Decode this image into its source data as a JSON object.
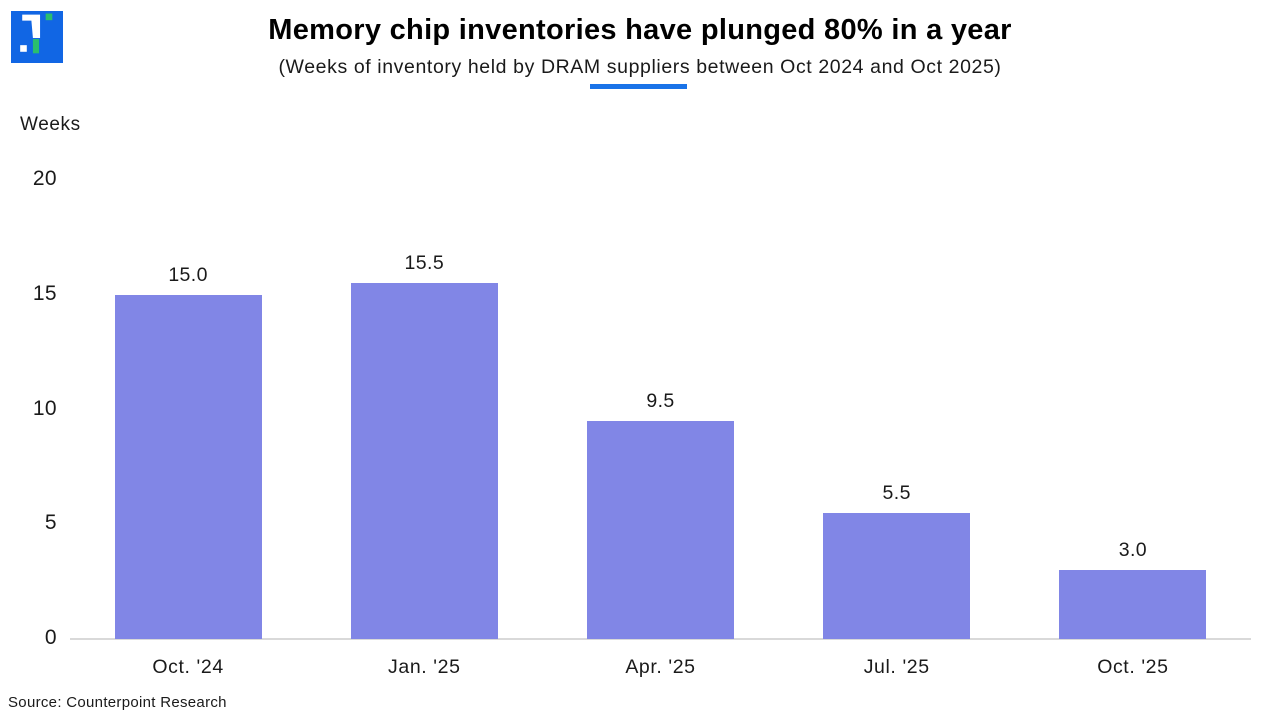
{
  "header": {
    "title": "Memory chip inventories have plunged 80% in a year",
    "subtitle": "(Weeks of inventory held by DRAM suppliers between Oct 2024 and Oct 2025)"
  },
  "logo": {
    "name": "counterpoint-research-logo",
    "background_color": "#1166e4",
    "glyph_color": "#ffffff",
    "accent_color": "#2abe6e"
  },
  "accent_underline_color": "#1a73e8",
  "chart_data": {
    "type": "bar",
    "title": "Memory chip inventories have plunged 80% in a year",
    "subtitle": "(Weeks of inventory held by DRAM suppliers between Oct 2024 and Oct 2025)",
    "categories": [
      "Oct. '24",
      "Jan. '25",
      "Apr. '25",
      "Jul. '25",
      "Oct. '25"
    ],
    "values": [
      15.0,
      15.5,
      9.5,
      5.5,
      3.0
    ],
    "value_labels": [
      "15.0",
      "15.5",
      "9.5",
      "5.5",
      "3.0"
    ],
    "ylabel": "Weeks",
    "ylim": [
      0,
      20
    ],
    "yticks": [
      0,
      5,
      10,
      15,
      20
    ],
    "ytick_labels": [
      "0",
      "5",
      "10",
      "15",
      "20"
    ],
    "bar_color": "#8186e6",
    "axis_line_color": "#d9d9d9",
    "grid": false,
    "legend": false
  },
  "footer": {
    "source": "Source: Counterpoint Research"
  }
}
